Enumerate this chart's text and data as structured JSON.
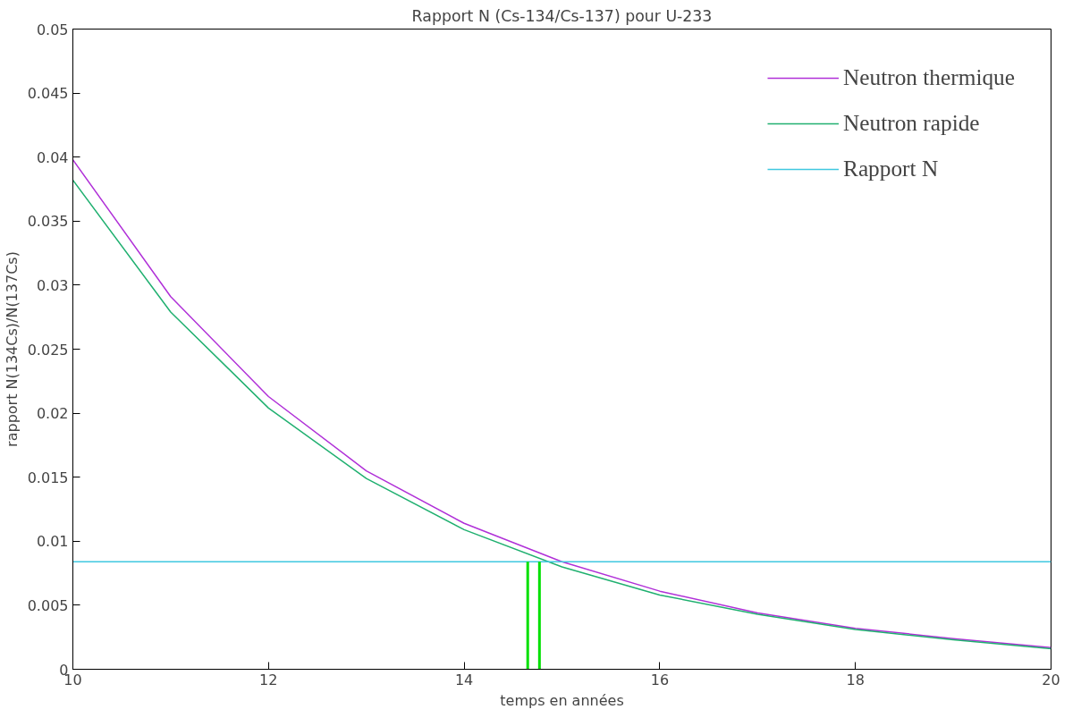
{
  "chart_data": {
    "type": "line",
    "title": "Rapport N (Cs-134/Cs-137) pour U-233",
    "xlabel": "temps en années",
    "ylabel": "rapport N(134Cs)/N(137Cs)",
    "x": [
      10,
      11,
      12,
      13,
      14,
      15,
      16,
      17,
      18,
      19,
      20
    ],
    "series": [
      {
        "name": "Neutron thermique",
        "color": "#b030d8",
        "values": [
          0.0398,
          0.0291,
          0.0213,
          0.0155,
          0.0114,
          0.0084,
          0.0061,
          0.0044,
          0.0032,
          0.0024,
          0.0017
        ]
      },
      {
        "name": "Neutron rapide",
        "color": "#20b070",
        "values": [
          0.0382,
          0.0279,
          0.0204,
          0.0149,
          0.0109,
          0.008,
          0.0058,
          0.0043,
          0.0031,
          0.0023,
          0.0016
        ]
      },
      {
        "name": "Rapport N",
        "color": "#40c8e0",
        "x": [
          10,
          20
        ],
        "values": [
          0.0084,
          0.0084
        ]
      },
      {
        "color": "#00e000",
        "x": [
          14.65,
          14.65
        ],
        "values": [
          0,
          0.0084
        ]
      },
      {
        "color": "#00e000",
        "x": [
          14.77,
          14.77
        ],
        "values": [
          0,
          0.0084
        ]
      }
    ],
    "xlim": [
      10,
      20
    ],
    "ylim": [
      0,
      0.05
    ],
    "xticks": [
      10,
      12,
      14,
      16,
      18,
      20
    ],
    "yticks": [
      0,
      0.005,
      0.01,
      0.015,
      0.02,
      0.025,
      0.03,
      0.035,
      0.04,
      0.045,
      0.05
    ],
    "grid": false,
    "legend": "top right",
    "marker": "none",
    "line_style": "solid"
  }
}
